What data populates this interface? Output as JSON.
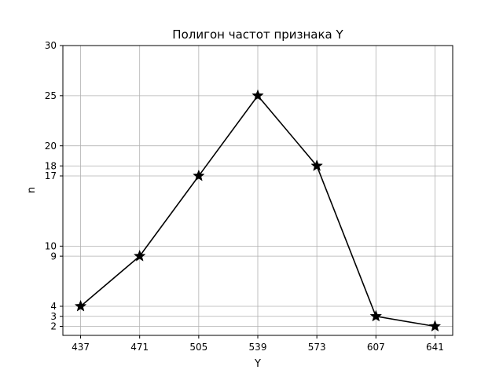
{
  "chart_data": {
    "type": "line",
    "title": "Полигон частот признака Y",
    "xlabel": "Y",
    "ylabel": "n",
    "x": [
      437,
      471,
      505,
      539,
      573,
      607,
      641
    ],
    "series": [
      {
        "values": [
          4,
          9,
          17,
          25,
          18,
          3,
          2
        ],
        "color": "#000000",
        "marker": "star"
      }
    ],
    "x_ticks": [
      437,
      471,
      505,
      539,
      573,
      607,
      641
    ],
    "y_ticks": [
      2,
      3,
      4,
      9,
      10,
      17,
      18,
      20,
      25,
      30
    ],
    "xlim": [
      426.8,
      651.2
    ],
    "ylim": [
      1.1,
      30
    ],
    "grid": true,
    "grid_color": "#b0b0b0",
    "legend": "none"
  }
}
